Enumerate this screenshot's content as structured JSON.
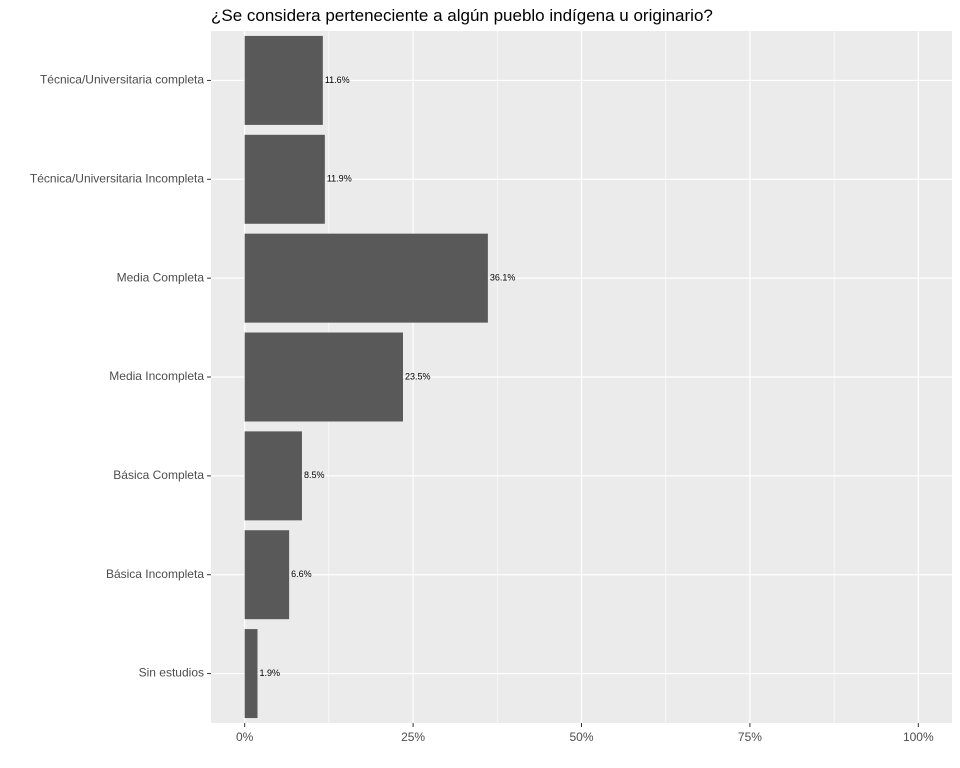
{
  "chart_data": {
    "type": "bar",
    "orientation": "horizontal",
    "title": "¿Se considera perteneciente a algún pueblo indígena u originario?",
    "xlabel": "",
    "ylabel": "",
    "categories": [
      "Técnica/Universitaria completa",
      "Técnica/Universitaria Incompleta",
      "Media Completa",
      "Media Incompleta",
      "Básica Completa",
      "Básica Incompleta",
      "Sin estudios"
    ],
    "values": [
      11.6,
      11.9,
      36.1,
      23.5,
      8.5,
      6.6,
      1.9
    ],
    "data_labels": [
      "11.6%",
      "11.9%",
      "36.1%",
      "23.5%",
      "8.5%",
      "6.6%",
      "1.9%"
    ],
    "x_ticks": [
      0,
      25,
      50,
      75,
      100
    ],
    "x_tick_labels": [
      "0%",
      "25%",
      "50%",
      "75%",
      "100%"
    ],
    "xlim": [
      -5,
      105
    ],
    "grid": true,
    "legend": "none",
    "colors": {
      "bar": "#595959",
      "panel_background": "#ebebeb",
      "grid_line": "#ffffff"
    }
  }
}
